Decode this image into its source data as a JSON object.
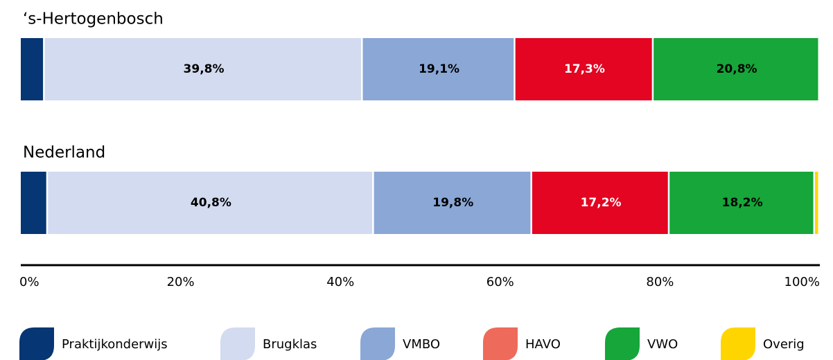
{
  "chart_data": {
    "type": "stacked-bar-horizontal",
    "categories": [
      "‘s-Hertogenbosch",
      "Nederland"
    ],
    "series": [
      {
        "name": "Praktijkonderwijs",
        "color": "#063673",
        "legend_color": "#063673",
        "label_color": "#000000",
        "values": [
          3.0,
          3.4
        ],
        "value_labels": [
          null,
          null
        ]
      },
      {
        "name": "Brugklas",
        "color": "#d3dbf0",
        "legend_color": "#d3dbf0",
        "label_color": "#000000",
        "values": [
          39.8,
          40.8
        ],
        "value_labels": [
          "39,8%",
          "40,8%"
        ]
      },
      {
        "name": "VMBO",
        "color": "#8aa7d6",
        "legend_color": "#8aa7d6",
        "label_color": "#000000",
        "values": [
          19.1,
          19.8
        ],
        "value_labels": [
          "19,1%",
          "19,8%"
        ]
      },
      {
        "name": "HAVO",
        "color": "#e30521",
        "legend_color": "#ee6a5a",
        "label_color": "#ffffff",
        "values": [
          17.3,
          17.2
        ],
        "value_labels": [
          "17,3%",
          "17,2%"
        ]
      },
      {
        "name": "VWO",
        "color": "#16a639",
        "legend_color": "#16a639",
        "label_color": "#000000",
        "values": [
          20.8,
          18.2
        ],
        "value_labels": [
          "20,8%",
          "18,2%"
        ]
      },
      {
        "name": "Overig",
        "color": "#ffd500",
        "legend_color": "#ffd500",
        "label_color": "#000000",
        "values": [
          0,
          0.6
        ],
        "value_labels": [
          null,
          null
        ]
      }
    ],
    "xlim": [
      0,
      100
    ],
    "xticks": [
      {
        "value": 0,
        "label": "0%"
      },
      {
        "value": 20,
        "label": "20%"
      },
      {
        "value": 40,
        "label": "40%"
      },
      {
        "value": 60,
        "label": "60%"
      },
      {
        "value": 80,
        "label": "80%"
      },
      {
        "value": 100,
        "label": "100%"
      }
    ]
  }
}
